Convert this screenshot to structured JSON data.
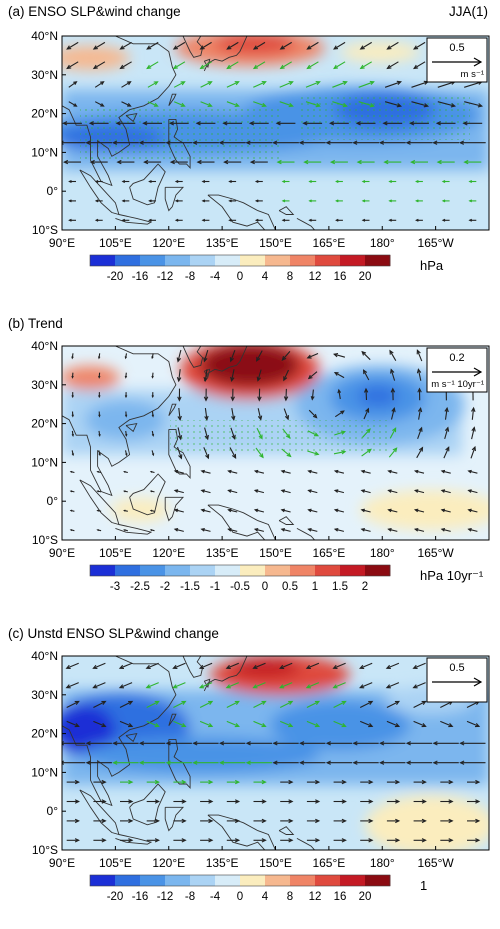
{
  "panels": [
    {
      "id": "a",
      "title": "(a) ENSO SLP&wind change",
      "right_label": "JJA(1)",
      "ref_vector": {
        "value": "0.5",
        "unit": "m s⁻¹"
      },
      "colorbar": {
        "labels": [
          "-20",
          "-16",
          "-12",
          "-8",
          "-4",
          "0",
          "4",
          "8",
          "12",
          "16",
          "20"
        ],
        "unit": "hPa"
      }
    },
    {
      "id": "b",
      "title": "(b) Trend",
      "right_label": "",
      "ref_vector": {
        "value": "0.2",
        "unit": "m s⁻¹ 10yr⁻¹"
      },
      "colorbar": {
        "labels": [
          "-3",
          "-2.5",
          "-2",
          "-1.5",
          "-1",
          "-0.5",
          "0",
          "0.5",
          "1",
          "1.5",
          "2"
        ],
        "unit": "hPa 10yr⁻¹"
      }
    },
    {
      "id": "c",
      "title": "(c) Unstd ENSO SLP&wind change",
      "right_label": "",
      "ref_vector": {
        "value": "0.5",
        "unit": ""
      },
      "colorbar": {
        "labels": [
          "-20",
          "-16",
          "-12",
          "-8",
          "-4",
          "0",
          "4",
          "8",
          "12",
          "16",
          "20"
        ],
        "unit": "1"
      }
    }
  ],
  "lat_labels": [
    "40°N",
    "30°N",
    "20°N",
    "10°N",
    "0°",
    "10°S"
  ],
  "lon_labels": [
    "90°E",
    "105°E",
    "120°E",
    "135°E",
    "150°E",
    "165°E",
    "180°",
    "165°W"
  ],
  "colors": {
    "ocean": "#c9e6f7",
    "vector_black": "#222222",
    "vector_green": "#2fb52f",
    "colorbar": [
      "#1b2fd6",
      "#2f6fe0",
      "#4a93e6",
      "#7bb6ee",
      "#abd3f4",
      "#d7ecf8",
      "#fbedbe",
      "#f6b88f",
      "#ef8466",
      "#df4a3e",
      "#c41a24",
      "#8b0b12"
    ]
  }
}
